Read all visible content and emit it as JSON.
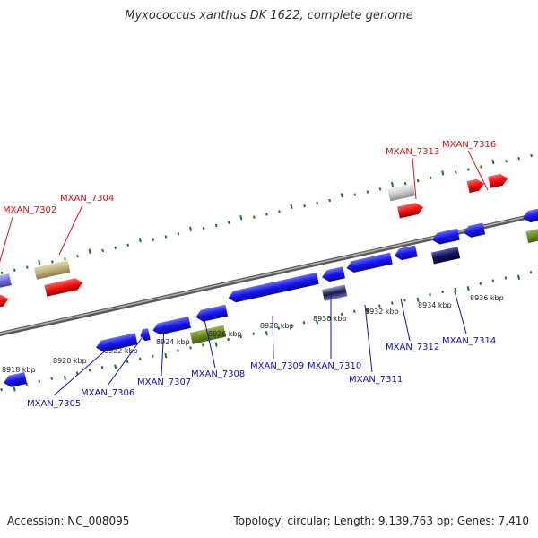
{
  "title": "Myxococcus xanthus DK 1622, complete genome",
  "footer": {
    "accession": "Accession: NC_008095",
    "summary": "Topology: circular; Length: 9,139,763 bp; Genes: 7,410"
  },
  "colors": {
    "backbone": "#8a8a8a",
    "tick": "#1a7a1a",
    "forward_label": "#dd1111",
    "reverse_label": "#1111bb"
  },
  "scale_labels": [
    "8918 kbp",
    "8920 kbp",
    "8922 kbp",
    "8924 kbp",
    "8926 kbp",
    "8928 kbp",
    "8930 kbp",
    "8932 kbp",
    "8934 kbp",
    "8936 kbp"
  ],
  "genes_labeled_forward": [
    "MXAN_7302",
    "MXAN_7304",
    "MXAN_7313",
    "MXAN_7316"
  ],
  "genes_labeled_reverse": [
    "MXAN_7305",
    "MXAN_7306",
    "MXAN_7307",
    "MXAN_7308",
    "MXAN_7309",
    "MXAN_7310",
    "MXAN_7311",
    "MXAN_7312",
    "MXAN_7314"
  ]
}
